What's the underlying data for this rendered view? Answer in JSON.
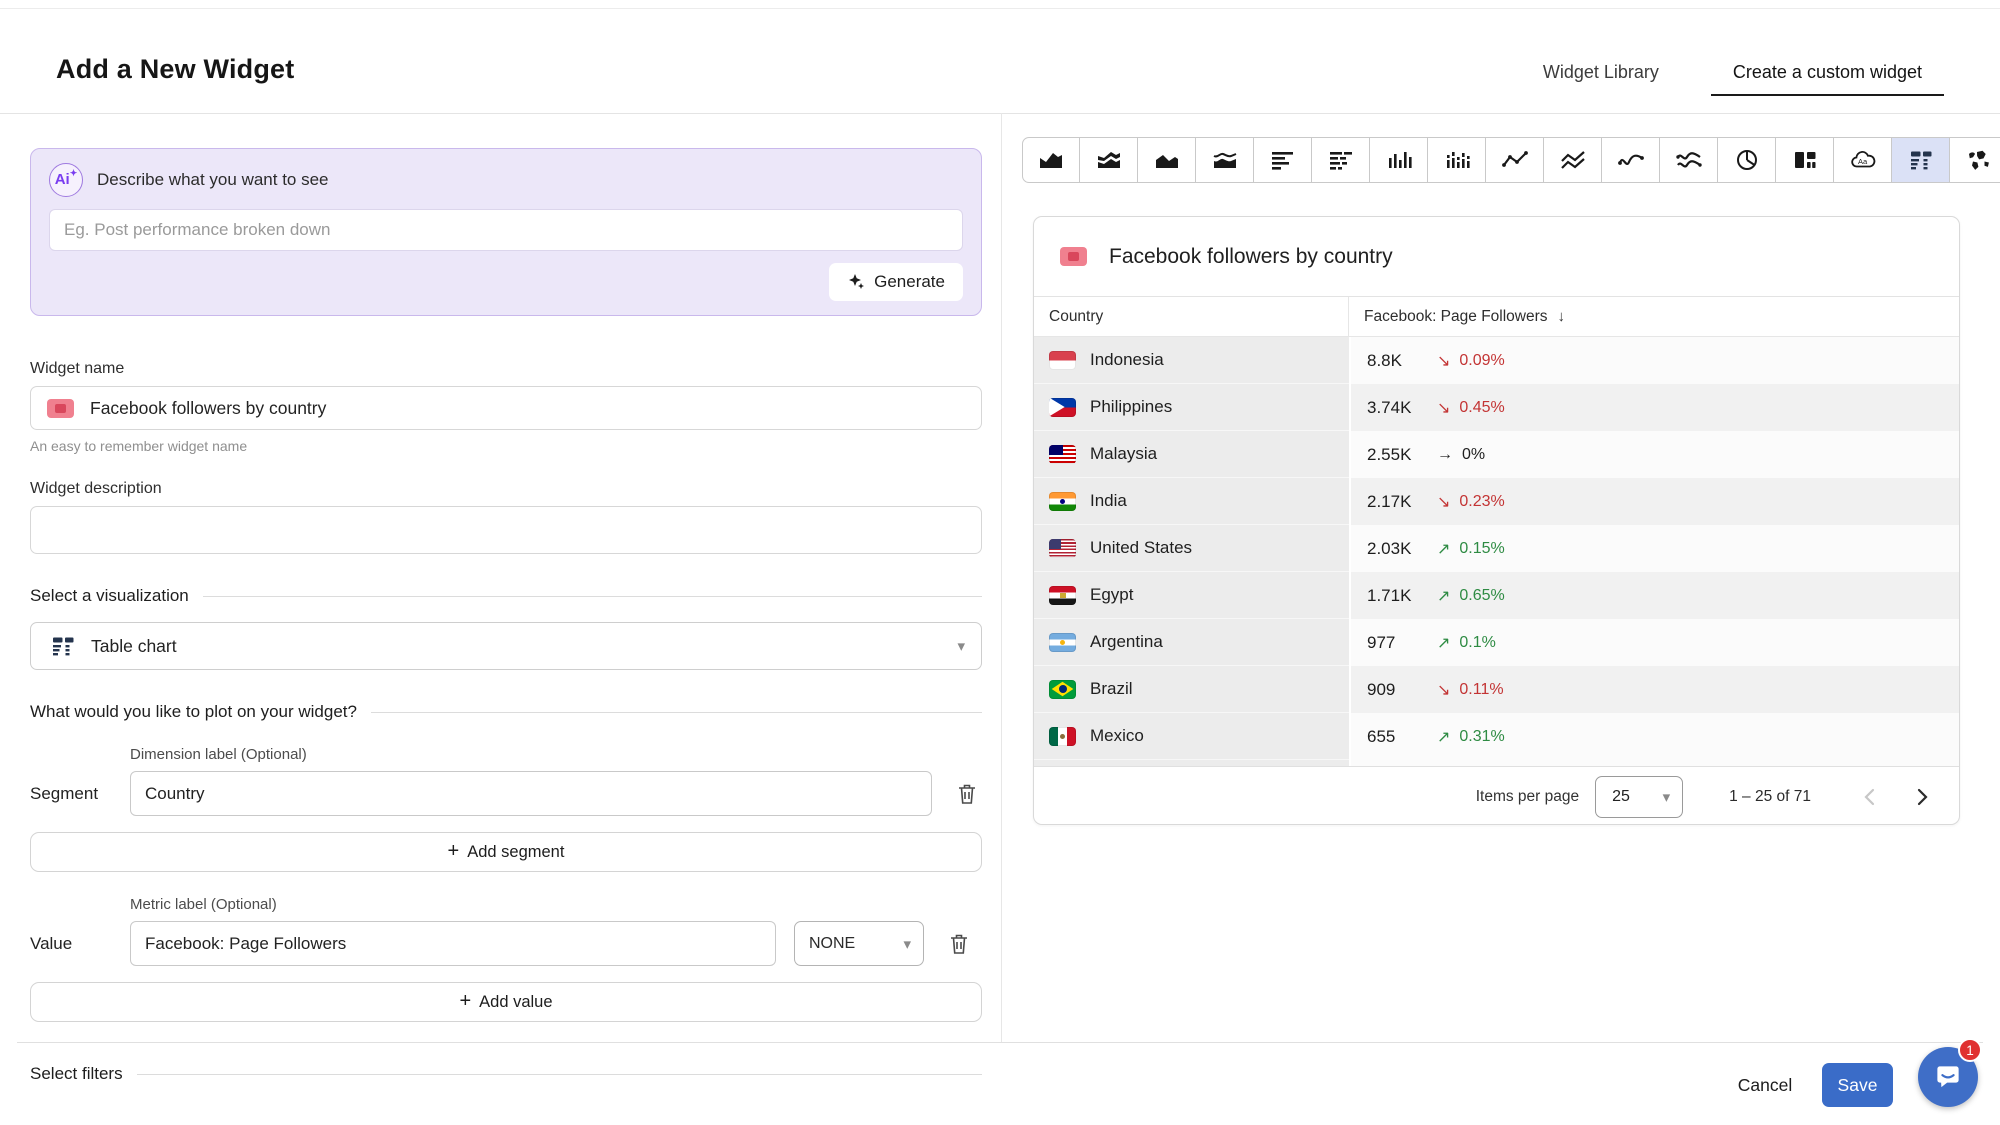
{
  "window": {
    "title": "Add a New Widget"
  },
  "tabs": {
    "library": "Widget Library",
    "custom": "Create a custom widget"
  },
  "ai": {
    "badge": "Ai",
    "prompt_label": "Describe what you want to see",
    "input_placeholder": "Eg. Post performance broken down",
    "generate": "Generate"
  },
  "form": {
    "name_label": "Widget name",
    "name_value": "Facebook followers by country",
    "name_helper": "An easy to remember widget name",
    "description_label": "Widget description",
    "description_value": "",
    "visualization_label": "Select a visualization",
    "visualization_value": "Table chart",
    "plot_label": "What would you like to plot on your widget?",
    "dimension_label": "Dimension label (Optional)",
    "segment_label": "Segment",
    "segment_value": "Country",
    "add_segment": "Add segment",
    "metric_label": "Metric label (Optional)",
    "value_label": "Value",
    "value_value": "Facebook: Page Followers",
    "aggregation_value": "NONE",
    "add_value": "Add value",
    "filters_label": "Select filters"
  },
  "toolbar": {
    "selected": "table-chart",
    "icons": [
      "area-chart",
      "stacked-area-chart",
      "filled-area-chart",
      "wave-area-chart",
      "horizontal-bar-chart",
      "stacked-horizontal-bar-chart",
      "column-chart",
      "stacked-column-chart",
      "line-chart",
      "multi-line-chart",
      "curve-chart",
      "multi-curve-chart",
      "pie-chart",
      "number-blocks",
      "word-cloud",
      "table-chart",
      "world-map"
    ]
  },
  "preview": {
    "title": "Facebook followers by country",
    "pagination": {
      "label": "Items per page",
      "value": "25",
      "range": "1 – 25 of 71"
    }
  },
  "footer": {
    "cancel": "Cancel",
    "save": "Save",
    "chat_badge": "1"
  },
  "chart_data": {
    "type": "table",
    "title": "Facebook followers by country",
    "columns": [
      "Country",
      "Facebook: Page Followers"
    ],
    "sort": {
      "column": "Facebook: Page Followers",
      "direction": "desc"
    },
    "rows": [
      {
        "country": "Indonesia",
        "flag": "id",
        "value": "8.8K",
        "trend": "down",
        "change": "0.09%"
      },
      {
        "country": "Philippines",
        "flag": "ph",
        "value": "3.74K",
        "trend": "down",
        "change": "0.45%"
      },
      {
        "country": "Malaysia",
        "flag": "my",
        "value": "2.55K",
        "trend": "flat",
        "change": "0%"
      },
      {
        "country": "India",
        "flag": "in",
        "value": "2.17K",
        "trend": "down",
        "change": "0.23%"
      },
      {
        "country": "United States",
        "flag": "us",
        "value": "2.03K",
        "trend": "up",
        "change": "0.15%"
      },
      {
        "country": "Egypt",
        "flag": "eg",
        "value": "1.71K",
        "trend": "up",
        "change": "0.65%"
      },
      {
        "country": "Argentina",
        "flag": "ar",
        "value": "977",
        "trend": "up",
        "change": "0.1%"
      },
      {
        "country": "Brazil",
        "flag": "br",
        "value": "909",
        "trend": "down",
        "change": "0.11%"
      },
      {
        "country": "Mexico",
        "flag": "mx",
        "value": "655",
        "trend": "up",
        "change": "0.31%"
      }
    ],
    "pagination": {
      "items_per_page": 25,
      "range": "1 – 25 of 71",
      "total_items": 71
    }
  },
  "colors": {
    "trend_up": "#2e8b43",
    "trend_down": "#c33434",
    "trend_flat": "#1f1f1f",
    "save_blue": "#3a6cc8",
    "chat_blue": "#3f6ec7",
    "ai_purple": "#7a3df0",
    "selected_tool_bg": "#dbe1f6"
  }
}
